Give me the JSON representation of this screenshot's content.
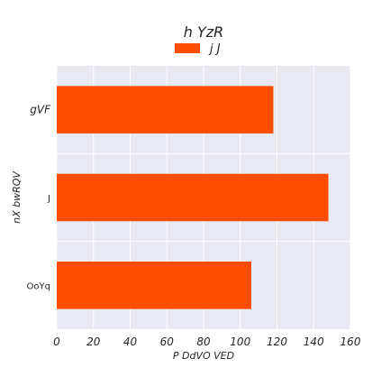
{
  "chart_data": {
    "type": "bar",
    "orientation": "horizontal",
    "title": "h YzR",
    "xlabel": "P DdVO VED",
    "ylabel": "nX bwRQV",
    "categories": [
      "gVF",
      "J",
      "OoYq"
    ],
    "series": [
      {
        "name": "j J",
        "values": [
          118,
          148,
          106
        ],
        "color": "#ff4d00"
      }
    ],
    "xlim": [
      0,
      160
    ],
    "xticks": [
      "0",
      "20",
      "40",
      "60",
      "80",
      "100",
      "120",
      "140",
      "160"
    ],
    "grid": true,
    "legend_position": "top-center",
    "background_color": "#e8e9f2",
    "grid_color": "#ffffff"
  }
}
